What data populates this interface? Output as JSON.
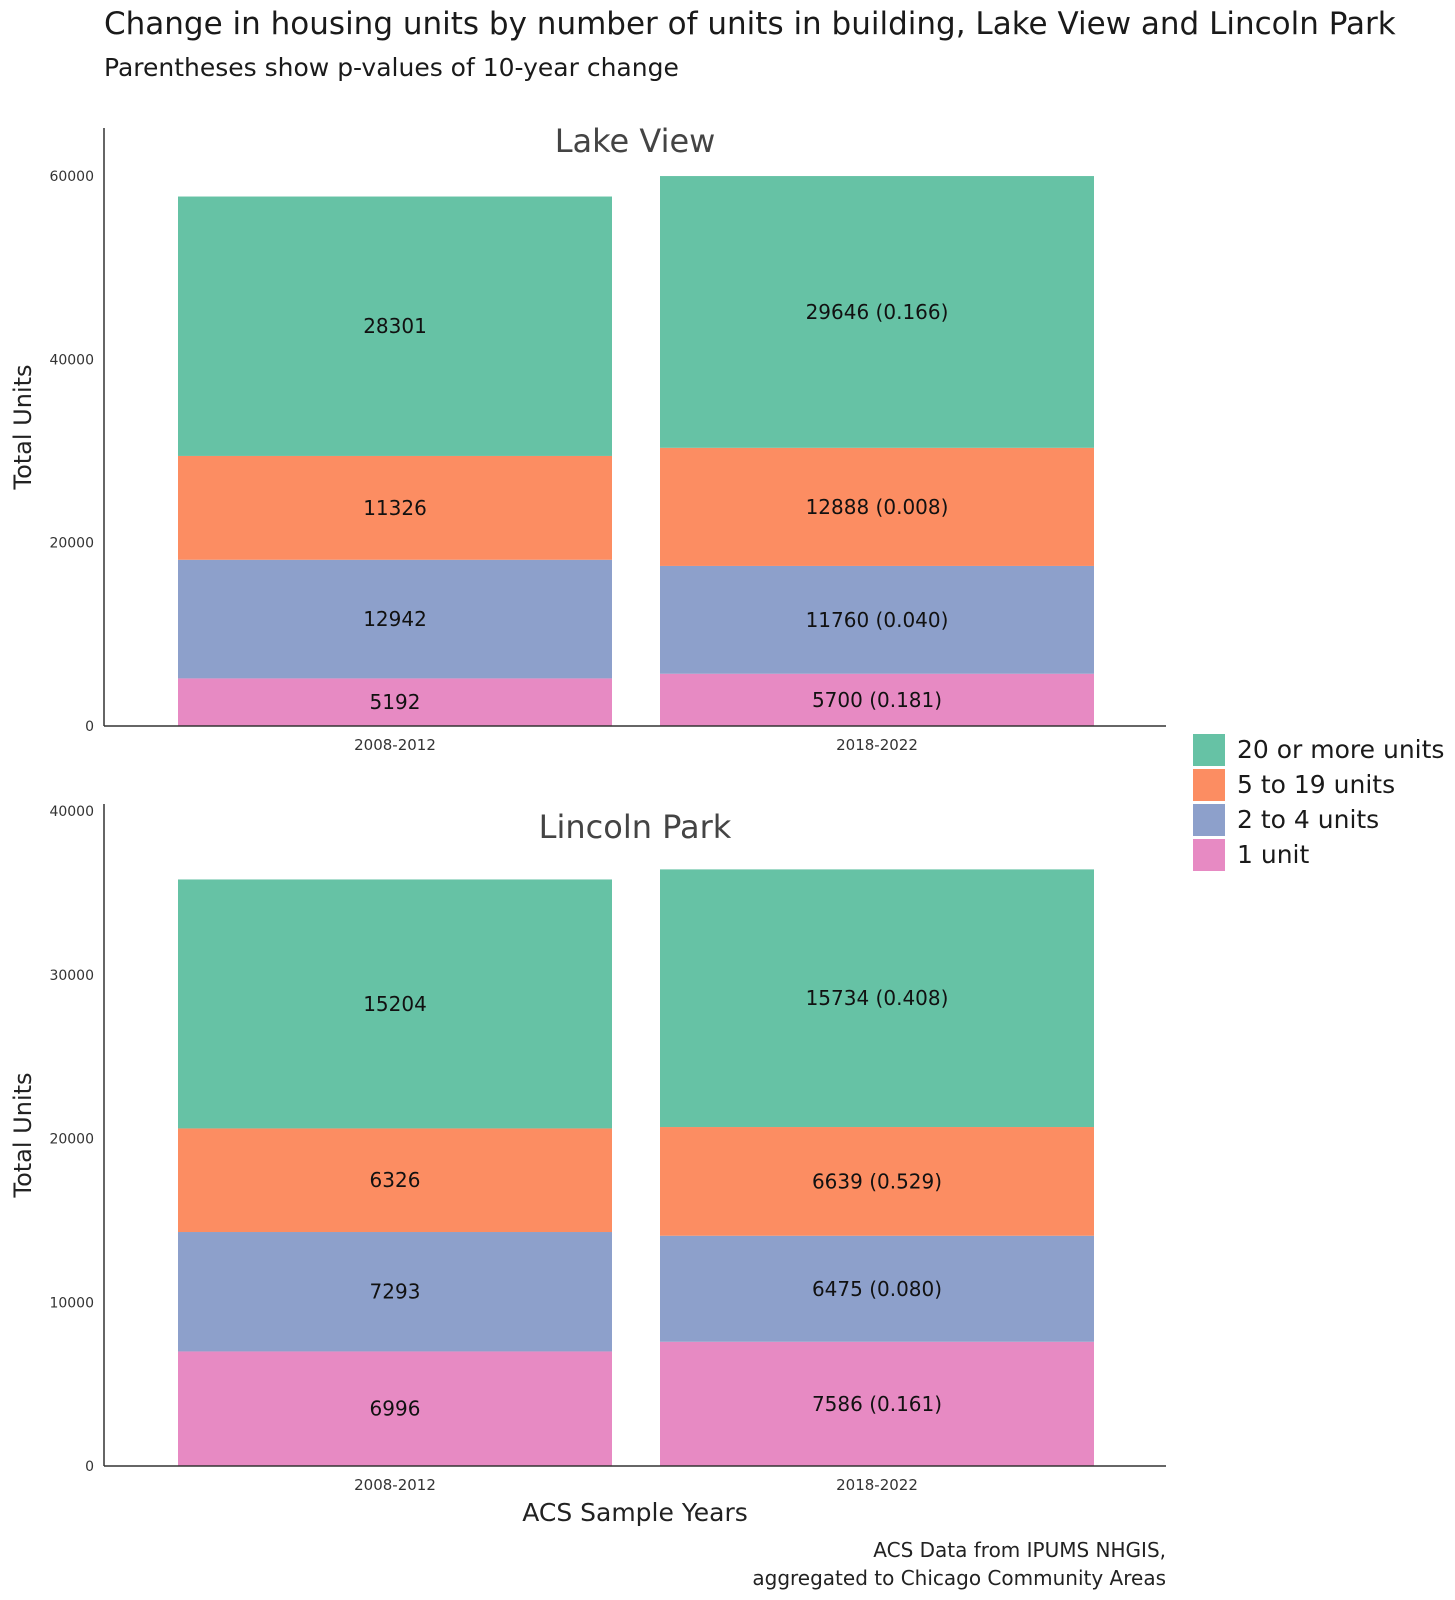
{
  "title": "Change in housing units by number of units in building, Lake View and Lincoln Park",
  "subtitle": "Parentheses show p-values of 10-year change",
  "caption_line1": "ACS Data from IPUMS NHGIS,",
  "caption_line2": "aggregated to Chicago Community Areas",
  "legend": [
    {
      "label": "20 or more units",
      "color": "#66c2a5"
    },
    {
      "label": "5 to 19 units",
      "color": "#fc8d62"
    },
    {
      "label": "2 to 4 units",
      "color": "#8da0cb"
    },
    {
      "label": "1 unit",
      "color": "#e78ac3"
    }
  ],
  "chart_data": [
    {
      "type": "bar",
      "stacked": true,
      "title": "Lake View",
      "xlabel": "",
      "ylabel": "Total Units",
      "ylim": [
        0,
        60000
      ],
      "yticks": [
        0,
        20000,
        40000,
        60000
      ],
      "categories": [
        "2008-2012",
        "2018-2022"
      ],
      "series": [
        {
          "name": "1 unit",
          "color": "#e78ac3",
          "values": [
            5192,
            5700
          ],
          "labels": [
            "5192",
            "5700 (0.181)"
          ]
        },
        {
          "name": "2 to 4 units",
          "color": "#8da0cb",
          "values": [
            12942,
            11760
          ],
          "labels": [
            "12942",
            "11760 (0.040)"
          ]
        },
        {
          "name": "5 to 19 units",
          "color": "#fc8d62",
          "values": [
            11326,
            12888
          ],
          "labels": [
            "11326",
            "12888 (0.008)"
          ]
        },
        {
          "name": "20 or more units",
          "color": "#66c2a5",
          "values": [
            28301,
            29646
          ],
          "labels": [
            "28301",
            "29646 (0.166)"
          ]
        }
      ]
    },
    {
      "type": "bar",
      "stacked": true,
      "title": "Lincoln Park",
      "xlabel": "ACS Sample Years",
      "ylabel": "Total Units",
      "ylim": [
        0,
        40000
      ],
      "yticks": [
        0,
        10000,
        20000,
        30000,
        40000
      ],
      "categories": [
        "2008-2012",
        "2018-2022"
      ],
      "series": [
        {
          "name": "1 unit",
          "color": "#e78ac3",
          "values": [
            6996,
            7586
          ],
          "labels": [
            "6996",
            "7586 (0.161)"
          ]
        },
        {
          "name": "2 to 4 units",
          "color": "#8da0cb",
          "values": [
            7293,
            6475
          ],
          "labels": [
            "7293",
            "6475 (0.080)"
          ]
        },
        {
          "name": "5 to 19 units",
          "color": "#fc8d62",
          "values": [
            6326,
            6639
          ],
          "labels": [
            "6326",
            "6639 (0.529)"
          ]
        },
        {
          "name": "20 or more units",
          "color": "#66c2a5",
          "values": [
            15204,
            15734
          ],
          "labels": [
            "15204",
            "15734 (0.408)"
          ]
        }
      ]
    }
  ]
}
